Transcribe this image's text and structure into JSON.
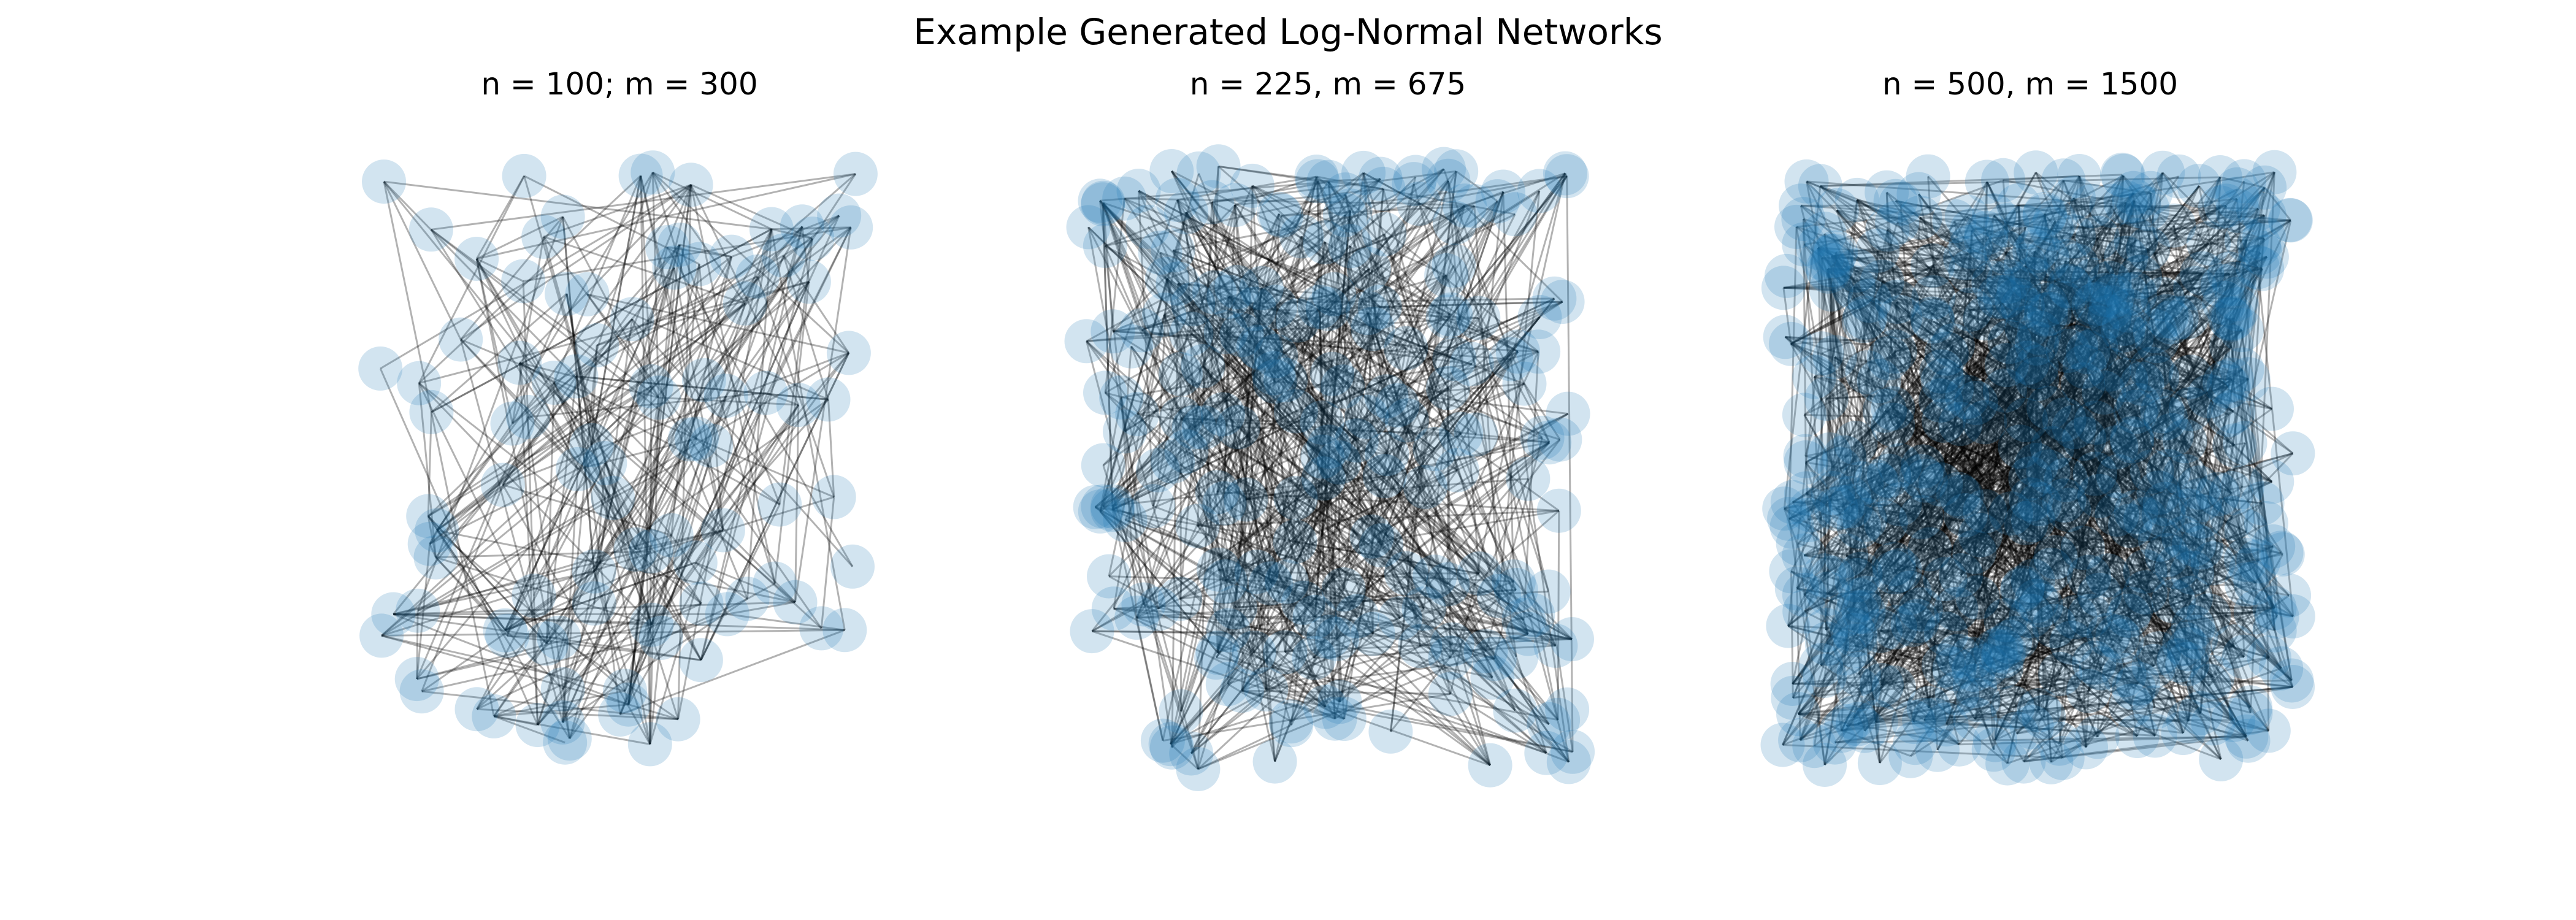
{
  "figure": {
    "title": "Example Generated Log-Normal Networks"
  },
  "panels": [
    {
      "title": "n = 100; m = 300",
      "nodes": 100,
      "edges": 300
    },
    {
      "title": "n = 225, m = 675",
      "nodes": 225,
      "edges": 675
    },
    {
      "title": "n = 500, m = 1500",
      "nodes": 500,
      "edges": 1500
    }
  ],
  "colors": {
    "node": "#1f77b4",
    "edge": "#000000"
  }
}
